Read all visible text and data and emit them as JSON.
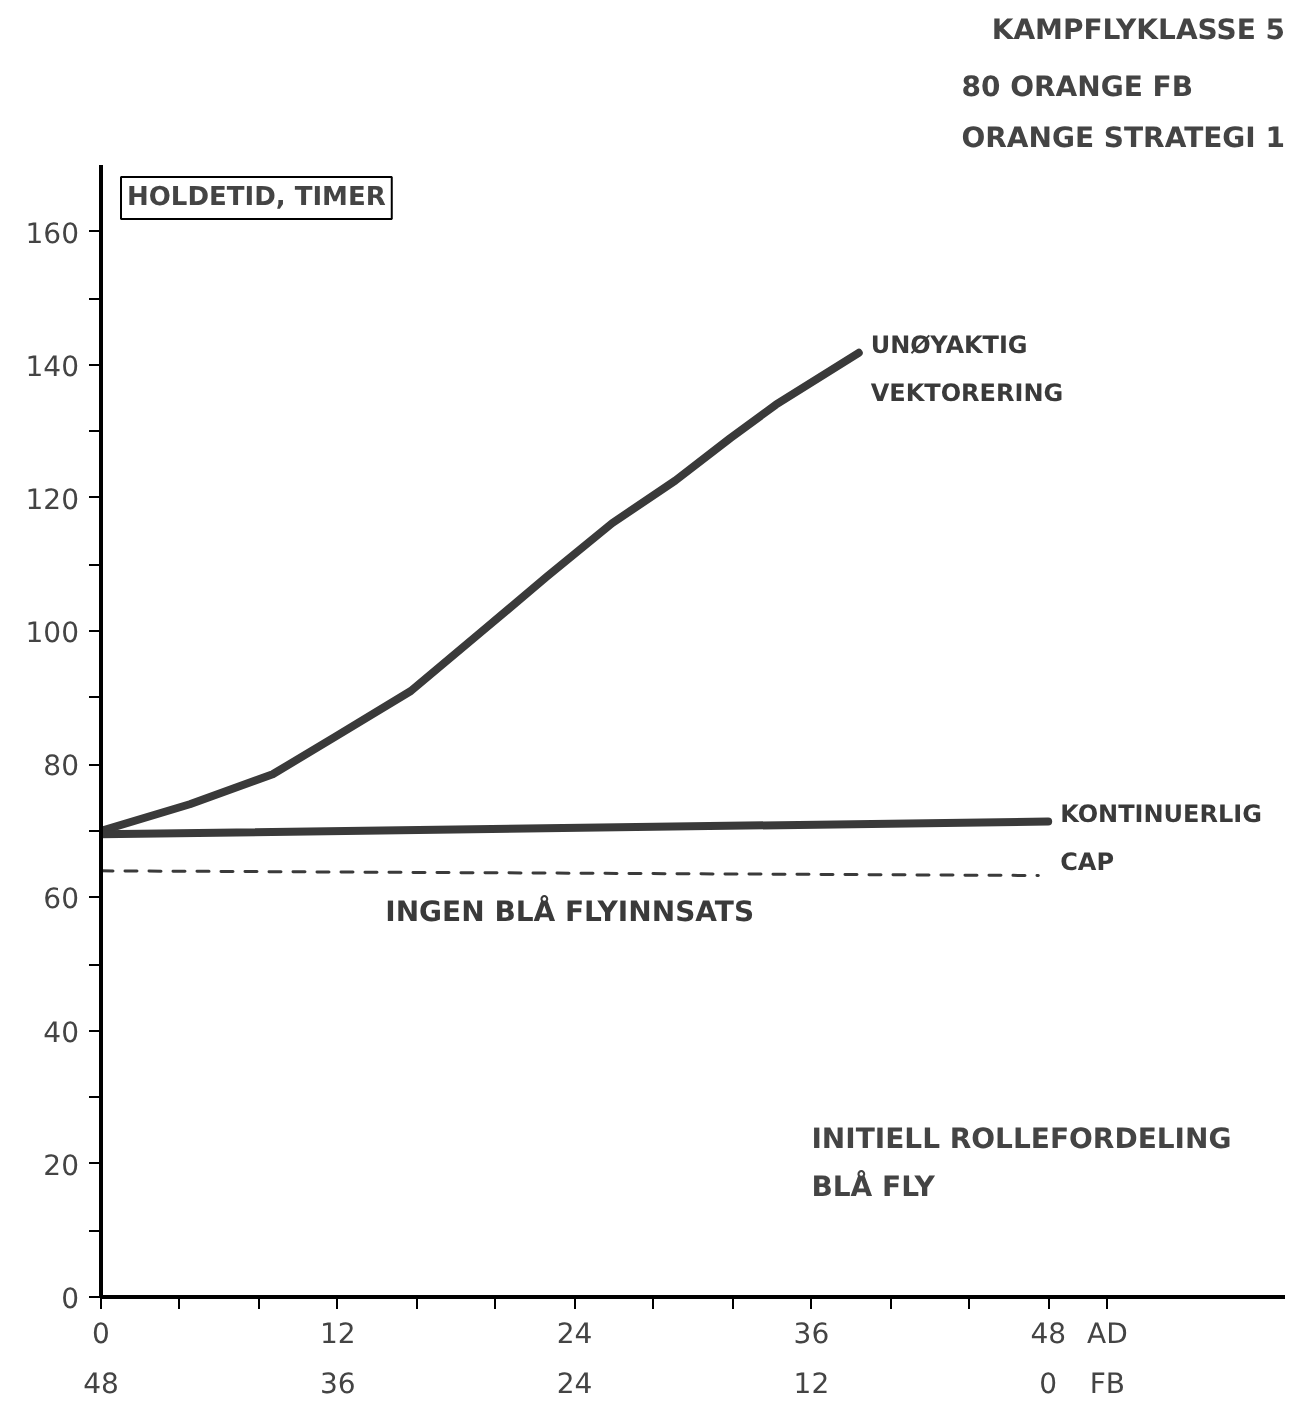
{
  "chart_data": {
    "type": "line",
    "title": "KAMPFLYKLASSE 5",
    "subtitle": "80 ORANGE FB\nORANGE STRATEGI 1",
    "ylabel": "HOLDETID, TIMER",
    "xlabel": "AD",
    "x2label": "FB",
    "xlim": [
      0,
      60
    ],
    "xticks": [
      0,
      {
        "value": 4,
        "label": null
      },
      {
        "value": 8,
        "label": null
      },
      12,
      {
        "value": 16,
        "label": null
      },
      {
        "value": 20,
        "label": null
      },
      24,
      {
        "value": 28,
        "label": null
      },
      {
        "value": 32,
        "label": null
      },
      36,
      {
        "value": 40,
        "label": null
      },
      {
        "value": 44,
        "label": null
      },
      48
    ],
    "x2lim": [
      48,
      -12
    ],
    "x2ticks": [
      48,
      36,
      24,
      12,
      0
    ],
    "ylim": [
      0,
      170
    ],
    "yticks": [
      0,
      {
        "value": 10,
        "label": null
      },
      20,
      {
        "value": 30,
        "label": null
      },
      40,
      {
        "value": 50,
        "label": null
      },
      60,
      {
        "value": 70,
        "label": null
      },
      80,
      {
        "value": 90,
        "label": null
      },
      100,
      {
        "value": 110,
        "label": null
      },
      120,
      {
        "value": 130,
        "label": null
      },
      140,
      {
        "value": 150,
        "label": null
      },
      160
    ],
    "grid": false,
    "series": [
      {
        "name": "UNØYAKTIG\nVEKTORERING",
        "color": "#3a3a3a",
        "x": [
          0,
          4.5,
          8.7,
          11.9,
          15.7,
          19.4,
          22.6,
          25.9,
          29.1,
          31.9,
          34.2,
          38.4
        ],
        "values": [
          70,
          74,
          78.5,
          84.2,
          91,
          100.2,
          108.2,
          116.2,
          122.6,
          129,
          134,
          141.8
        ]
      },
      {
        "name": "KONTINUERLIG\nCAP",
        "color": "#3a3a3a",
        "x": [
          0,
          48
        ],
        "values": [
          69.5,
          71.4
        ]
      },
      {
        "name": "INGEN BLÅ FLYINNSATS",
        "color": "#3a3a3a",
        "line_style": "dashed",
        "x": [
          0,
          47.5
        ],
        "values": [
          64,
          63.3
        ]
      }
    ],
    "annotations": [
      "INITIELL ROLLEFORDELING\nBLÅ FLY"
    ]
  }
}
